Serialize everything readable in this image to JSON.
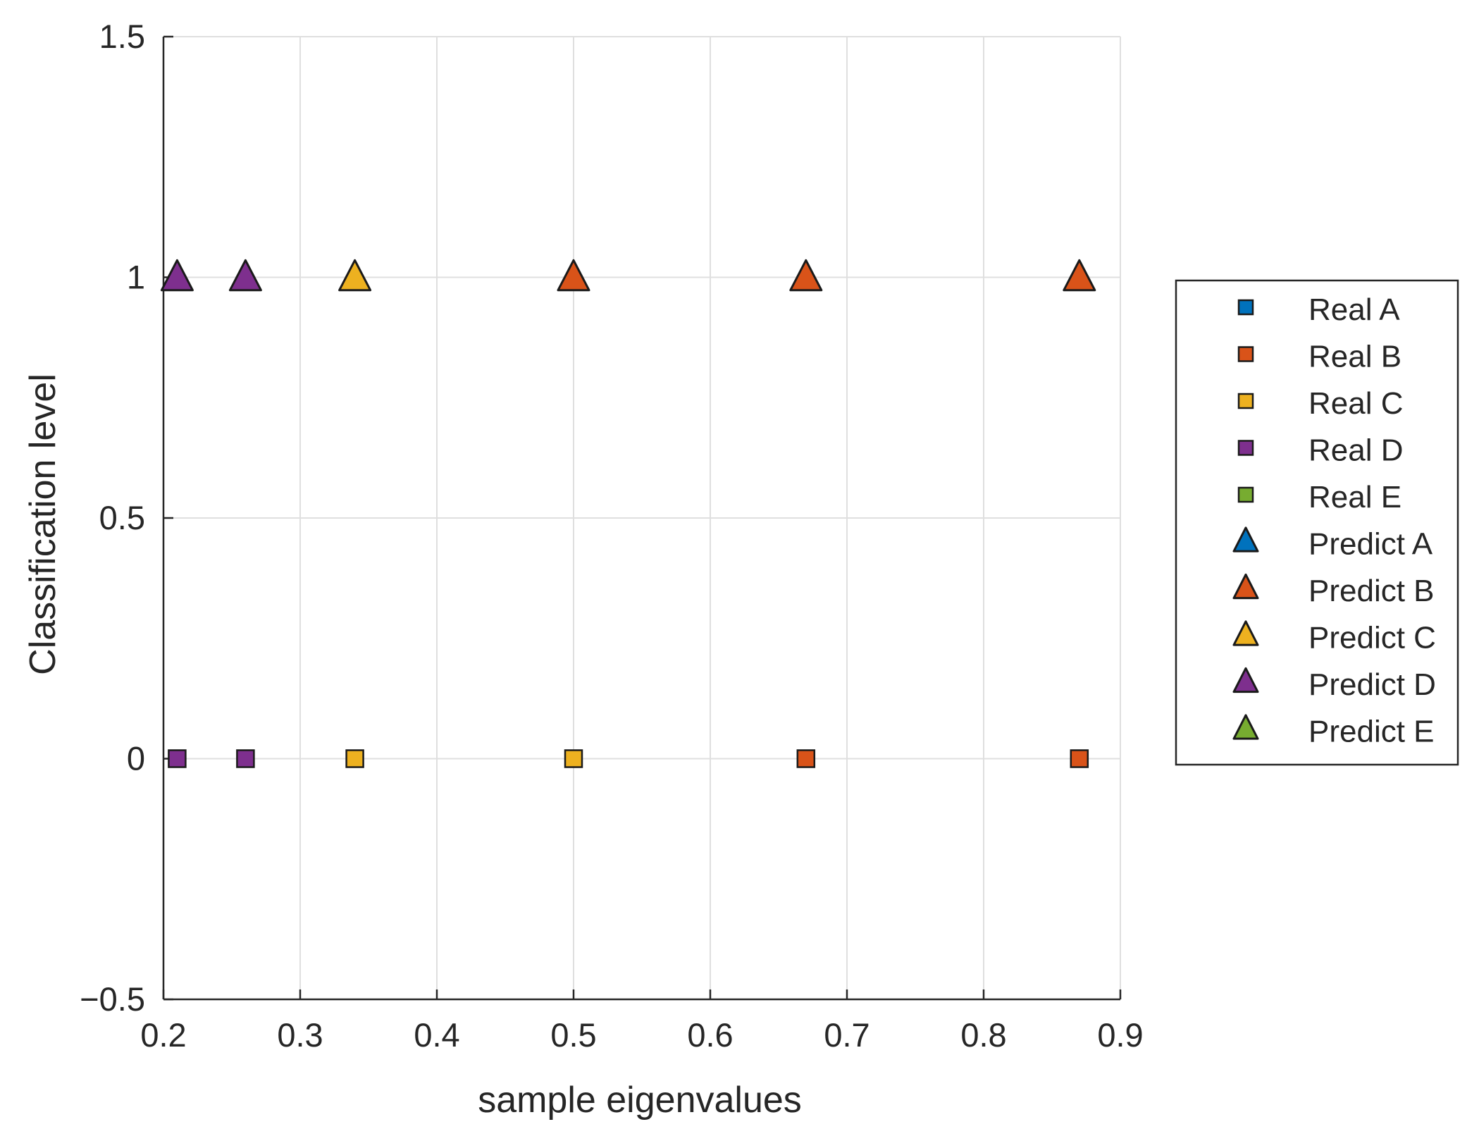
{
  "chart_data": {
    "type": "scatter",
    "title": "",
    "xlabel": "sample eigenvalues",
    "ylabel": "Classification level",
    "xlim": [
      0.2,
      0.9
    ],
    "ylim": [
      -0.5,
      1.5
    ],
    "xticks": [
      "0.2",
      "0.3",
      "0.4",
      "0.5",
      "0.6",
      "0.7",
      "0.8",
      "0.9"
    ],
    "yticks": [
      "−0.5",
      "0",
      "0.5",
      "1",
      "1.5"
    ],
    "grid": true,
    "legend_position": "right outside",
    "series": [
      {
        "name": "Real A",
        "marker": "square",
        "color": "#0072BD",
        "points": []
      },
      {
        "name": "Real B",
        "marker": "square",
        "color": "#D95319",
        "points": [
          {
            "x": 0.67,
            "y": 0
          },
          {
            "x": 0.87,
            "y": 0
          }
        ]
      },
      {
        "name": "Real C",
        "marker": "square",
        "color": "#EDB120",
        "points": [
          {
            "x": 0.34,
            "y": 0
          },
          {
            "x": 0.5,
            "y": 0
          }
        ]
      },
      {
        "name": "Real D",
        "marker": "square",
        "color": "#7E2F8E",
        "points": [
          {
            "x": 0.21,
            "y": 0
          },
          {
            "x": 0.26,
            "y": 0
          }
        ]
      },
      {
        "name": "Real E",
        "marker": "square",
        "color": "#77AC30",
        "points": []
      },
      {
        "name": "Predict A",
        "marker": "triangle",
        "color": "#0072BD",
        "points": []
      },
      {
        "name": "Predict B",
        "marker": "triangle",
        "color": "#D95319",
        "points": [
          {
            "x": 0.5,
            "y": 1
          },
          {
            "x": 0.67,
            "y": 1
          },
          {
            "x": 0.87,
            "y": 1
          }
        ]
      },
      {
        "name": "Predict C",
        "marker": "triangle",
        "color": "#EDB120",
        "points": [
          {
            "x": 0.34,
            "y": 1
          }
        ]
      },
      {
        "name": "Predict D",
        "marker": "triangle",
        "color": "#7E2F8E",
        "points": [
          {
            "x": 0.21,
            "y": 1
          },
          {
            "x": 0.26,
            "y": 1
          }
        ]
      },
      {
        "name": "Predict E",
        "marker": "triangle",
        "color": "#77AC30",
        "points": []
      }
    ]
  }
}
